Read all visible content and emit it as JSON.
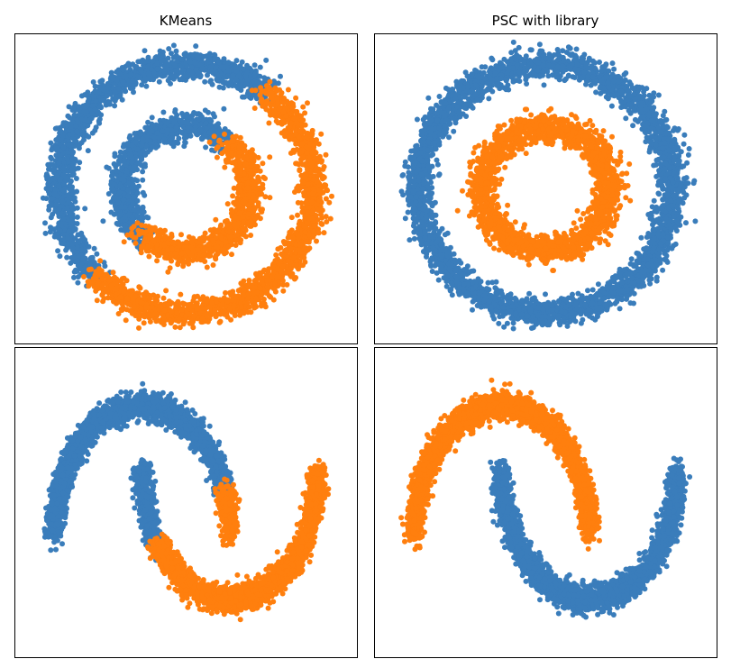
{
  "colors": {
    "cluster_0": "#3a7dbb",
    "cluster_1": "#ff7f0e",
    "frame": "#000000",
    "background": "#ffffff"
  },
  "column_titles": [
    "KMeans",
    "PSC with library"
  ],
  "chart_data": [
    {
      "type": "scatter",
      "title": "KMeans",
      "dataset": "circles",
      "xlabel": "",
      "ylabel": "",
      "ticks": false,
      "grid": false,
      "legend": "none",
      "xlim": [
        -1.35,
        1.35
      ],
      "ylim": [
        -1.25,
        1.25
      ],
      "series": [
        {
          "cluster": 0,
          "color": "#3a7dbb",
          "shape": "outer-ring",
          "radius": 1.0,
          "arc_deg": [
            50,
            225
          ],
          "points": 1700,
          "noise": 0.055
        },
        {
          "cluster": 0,
          "color": "#3a7dbb",
          "shape": "inner-ring",
          "radius": 0.5,
          "arc_deg": [
            50,
            225
          ],
          "points": 1000,
          "noise": 0.055
        },
        {
          "cluster": 1,
          "color": "#ff7f0e",
          "shape": "outer-ring",
          "radius": 1.0,
          "arc_deg": [
            225,
            410
          ],
          "points": 1700,
          "noise": 0.055
        },
        {
          "cluster": 1,
          "color": "#ff7f0e",
          "shape": "inner-ring",
          "radius": 0.5,
          "arc_deg": [
            225,
            410
          ],
          "points": 1000,
          "noise": 0.055
        }
      ]
    },
    {
      "type": "scatter",
      "title": "PSC with library",
      "dataset": "circles",
      "xlabel": "",
      "ylabel": "",
      "ticks": false,
      "grid": false,
      "legend": "none",
      "xlim": [
        -1.35,
        1.35
      ],
      "ylim": [
        -1.25,
        1.25
      ],
      "series": [
        {
          "cluster": 0,
          "color": "#3a7dbb",
          "shape": "outer-ring",
          "radius": 1.0,
          "arc_deg": [
            0,
            360
          ],
          "points": 3400,
          "noise": 0.055
        },
        {
          "cluster": 1,
          "color": "#ff7f0e",
          "shape": "inner-ring",
          "radius": 0.5,
          "arc_deg": [
            0,
            360
          ],
          "points": 2000,
          "noise": 0.055
        }
      ]
    },
    {
      "type": "scatter",
      "title": "",
      "dataset": "moons",
      "xlabel": "",
      "ylabel": "",
      "ticks": false,
      "grid": false,
      "legend": "none",
      "xlim": [
        -1.45,
        2.45
      ],
      "ylim": [
        -0.95,
        1.45
      ],
      "series": [
        {
          "cluster": 0,
          "color": "#3a7dbb",
          "shape": "upper-moon",
          "arc_deg": [
            20,
            180
          ],
          "points": 2200,
          "noise": 0.05
        },
        {
          "cluster": 0,
          "color": "#3a7dbb",
          "shape": "lower-moon",
          "arc_deg": [
            180,
            215
          ],
          "points": 500,
          "noise": 0.05
        },
        {
          "cluster": 1,
          "color": "#ff7f0e",
          "shape": "upper-moon",
          "arc_deg": [
            0,
            20
          ],
          "points": 300,
          "noise": 0.05
        },
        {
          "cluster": 1,
          "color": "#ff7f0e",
          "shape": "lower-moon",
          "arc_deg": [
            215,
            360
          ],
          "points": 2200,
          "noise": 0.05
        }
      ]
    },
    {
      "type": "scatter",
      "title": "",
      "dataset": "moons",
      "xlabel": "",
      "ylabel": "",
      "ticks": false,
      "grid": false,
      "legend": "none",
      "xlim": [
        -1.45,
        2.45
      ],
      "ylim": [
        -0.95,
        1.45
      ],
      "series": [
        {
          "cluster": 0,
          "color": "#3a7dbb",
          "shape": "lower-moon",
          "arc_deg": [
            180,
            360
          ],
          "points": 2700,
          "noise": 0.05
        },
        {
          "cluster": 1,
          "color": "#ff7f0e",
          "shape": "upper-moon",
          "arc_deg": [
            0,
            180
          ],
          "points": 2700,
          "noise": 0.05
        }
      ]
    }
  ]
}
